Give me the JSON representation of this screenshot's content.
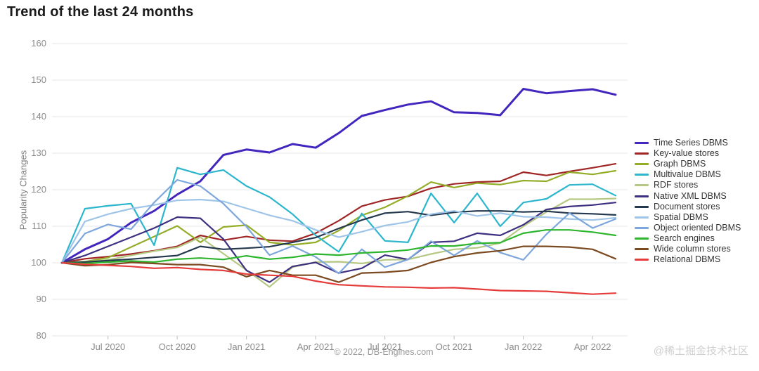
{
  "title": "Trend of the last 24 months",
  "y_axis_label": "Popularity Changes",
  "footer": "© 2022, DB-Engines.com",
  "watermark": "@稀土掘金技术社区",
  "chart_data": {
    "type": "line",
    "title": "Trend of the last 24 months",
    "xlabel": "",
    "ylabel": "Popularity Changes",
    "ylim": [
      80,
      160
    ],
    "y_ticks": [
      80,
      90,
      100,
      110,
      120,
      130,
      140,
      150,
      160
    ],
    "grid": "horizontal",
    "legend_position": "right",
    "grid_color": "#e7e7e7",
    "tick_color": "#bdbdbd",
    "x_months": [
      "May 2020",
      "Jun 2020",
      "Jul 2020",
      "Aug 2020",
      "Sep 2020",
      "Oct 2020",
      "Nov 2020",
      "Dec 2020",
      "Jan 2021",
      "Feb 2021",
      "Mar 2021",
      "Apr 2021",
      "May 2021",
      "Jun 2021",
      "Jul 2021",
      "Aug 2021",
      "Sep 2021",
      "Oct 2021",
      "Nov 2021",
      "Dec 2021",
      "Jan 2022",
      "Feb 2022",
      "Mar 2022",
      "Apr 2022",
      "May 2022"
    ],
    "x_tick_indices": [
      2,
      5,
      8,
      11,
      14,
      17,
      20,
      23
    ],
    "x_tick_labels": [
      "Jul 2020",
      "Oct 2020",
      "Jan 2021",
      "Apr 2021",
      "Jul 2021",
      "Oct 2021",
      "Jan 2022",
      "Apr 2022"
    ],
    "series": [
      {
        "name": "Time Series DBMS",
        "color": "#4226bd",
        "values": [
          100,
          103.7,
          106.5,
          111,
          114.2,
          118.7,
          122.3,
          129.5,
          131,
          130.2,
          132.5,
          131.5,
          135.5,
          140.2,
          141.8,
          143.3,
          144.2,
          141.2,
          141,
          140.4,
          147.6,
          146.4,
          147,
          147.5,
          146
        ]
      },
      {
        "name": "Key-value stores",
        "color": "#a02626",
        "values": [
          100,
          101.1,
          101.7,
          102.4,
          103.3,
          104.5,
          107.5,
          106.2,
          107.2,
          106.2,
          105.9,
          108.1,
          111.5,
          115.5,
          117.2,
          118.2,
          120.4,
          121.6,
          122.1,
          122.3,
          124.8,
          123.9,
          125,
          126,
          127.1
        ]
      },
      {
        "name": "Graph DBMS",
        "color": "#94ad28",
        "values": [
          100,
          100.3,
          101.4,
          104.3,
          107.2,
          110.1,
          105.6,
          109.8,
          110.3,
          105.6,
          104.9,
          105.6,
          108.8,
          113,
          115.2,
          118.3,
          122.1,
          120.6,
          121.8,
          121.4,
          122.5,
          122.3,
          124.8,
          124.2,
          125.2
        ]
      },
      {
        "name": "Multivalue DBMS",
        "color": "#2cb6cd",
        "values": [
          100,
          114.8,
          115.6,
          116.2,
          104.8,
          126,
          124.2,
          125.4,
          121,
          118,
          113.3,
          107.5,
          103,
          113.5,
          106,
          105.6,
          119,
          111,
          119,
          110,
          116.5,
          117.5,
          121.3,
          121.5,
          118.4
        ]
      },
      {
        "name": "RDF stores",
        "color": "#b5c985",
        "values": [
          100,
          100.2,
          100.8,
          102,
          103.2,
          104.2,
          107,
          102.5,
          98,
          93.4,
          98.8,
          100.2,
          100.3,
          99.8,
          100.8,
          100.9,
          102.4,
          103.7,
          104.1,
          105.4,
          110,
          113.9,
          117.4,
          117.4,
          117.6
        ]
      },
      {
        "name": "Native XML DBMS",
        "color": "#3f2f80",
        "values": [
          100,
          102,
          104.5,
          107,
          109.5,
          112.5,
          112.2,
          106.5,
          97.9,
          94.7,
          99,
          100.1,
          97.2,
          98.5,
          102.1,
          100.9,
          105.6,
          105.9,
          108.1,
          107.5,
          110.4,
          114.6,
          115.4,
          115.8,
          116.5
        ]
      },
      {
        "name": "Document stores",
        "color": "#24384e",
        "values": [
          100,
          100.2,
          100.6,
          101,
          101.5,
          102,
          104.5,
          103.7,
          104,
          104.4,
          105.6,
          106.9,
          109.4,
          111.7,
          113.6,
          114,
          113,
          113.8,
          114.2,
          114.2,
          113.9,
          114.1,
          113.6,
          113.4,
          113.1
        ]
      },
      {
        "name": "Spatial DBMS",
        "color": "#9fc5e8",
        "values": [
          100,
          111.3,
          113.3,
          114.8,
          115.8,
          117.1,
          117.3,
          116.8,
          114.9,
          113,
          111.5,
          109,
          107,
          108.5,
          110.2,
          111.2,
          113.3,
          114.2,
          112.8,
          113.6,
          112.6,
          112.5,
          112,
          111.7,
          112.3
        ]
      },
      {
        "name": "Object oriented DBMS",
        "color": "#7da7dc",
        "values": [
          100,
          108,
          110.5,
          109.2,
          116.5,
          122.7,
          121,
          116.2,
          109.9,
          102.1,
          104.6,
          101.6,
          97.1,
          103.7,
          98.8,
          100.9,
          105.9,
          102,
          106,
          102.8,
          100.8,
          107.8,
          113.6,
          109.5,
          112
        ]
      },
      {
        "name": "Search engines",
        "color": "#2db52d",
        "values": [
          100,
          99.8,
          100.2,
          100.5,
          100.2,
          101,
          101.3,
          100.9,
          101.9,
          101,
          101.5,
          102.4,
          102.1,
          102.7,
          103,
          103.5,
          104.6,
          104.6,
          105.3,
          105.5,
          108.1,
          109,
          109,
          108.4,
          107.5
        ]
      },
      {
        "name": "Wide column stores",
        "color": "#7c4a21",
        "values": [
          100,
          99.2,
          99.5,
          100.1,
          99.8,
          99.5,
          99.5,
          98.8,
          96.2,
          97.9,
          96.6,
          96.6,
          94.7,
          97.2,
          97.4,
          97.9,
          100.1,
          101.7,
          102.7,
          103.3,
          104.5,
          104.5,
          104.3,
          103.7,
          101.1
        ]
      },
      {
        "name": "Relational DBMS",
        "color": "#e53b3b",
        "values": [
          100,
          99.6,
          99.3,
          99,
          98.5,
          98.7,
          98.2,
          97.9,
          96.9,
          96.6,
          96.3,
          95,
          94,
          93.7,
          93.4,
          93.3,
          93.1,
          93.2,
          92.8,
          92.4,
          92.3,
          92.2,
          91.8,
          91.4,
          91.7
        ]
      }
    ]
  }
}
